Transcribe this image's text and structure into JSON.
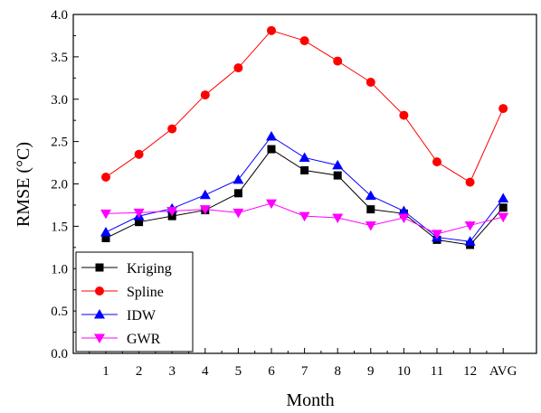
{
  "chart_data": {
    "type": "line",
    "title": "",
    "xlabel": "Month",
    "ylabel": "RMSE (°C)",
    "categories": [
      "1",
      "2",
      "3",
      "4",
      "5",
      "6",
      "7",
      "8",
      "9",
      "10",
      "11",
      "12",
      "AVG"
    ],
    "ylim": [
      0.0,
      4.0
    ],
    "yticks": [
      "0.0",
      "0.5",
      "1.0",
      "1.5",
      "2.0",
      "2.5",
      "3.0",
      "3.5",
      "4.0"
    ],
    "grid": false,
    "legend_position": "bottom-left",
    "series": [
      {
        "name": "Kriging",
        "color": "#000000",
        "marker": "square",
        "values": [
          1.36,
          1.55,
          1.62,
          1.69,
          1.89,
          2.41,
          2.16,
          2.1,
          1.7,
          1.65,
          1.34,
          1.28,
          1.72
        ]
      },
      {
        "name": "Spline",
        "color": "#ff0000",
        "marker": "circle",
        "values": [
          2.08,
          2.35,
          2.65,
          3.05,
          3.37,
          3.81,
          3.69,
          3.45,
          3.2,
          2.81,
          2.26,
          2.02,
          2.89
        ]
      },
      {
        "name": "IDW",
        "color": "#0000ff",
        "marker": "triangle-up",
        "values": [
          1.43,
          1.62,
          1.71,
          1.87,
          2.05,
          2.56,
          2.31,
          2.22,
          1.86,
          1.68,
          1.37,
          1.32,
          1.83
        ]
      },
      {
        "name": "GWR",
        "color": "#ff00ff",
        "marker": "triangle-down",
        "values": [
          1.65,
          1.66,
          1.68,
          1.7,
          1.66,
          1.77,
          1.62,
          1.6,
          1.51,
          1.6,
          1.41,
          1.51,
          1.61
        ]
      }
    ]
  }
}
